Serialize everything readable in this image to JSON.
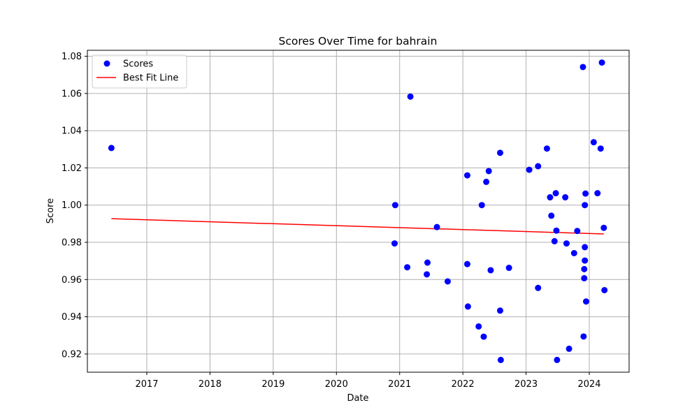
{
  "chart_data": {
    "type": "scatter",
    "title": "Scores Over Time for bahrain",
    "xlabel": "Date",
    "ylabel": "Score",
    "xlim": [
      2016.06,
      2024.63
    ],
    "ylim": [
      0.9102,
      1.0832
    ],
    "x_ticks": [
      2017,
      2018,
      2019,
      2020,
      2021,
      2022,
      2023,
      2024
    ],
    "y_ticks": [
      0.92,
      0.94,
      0.96,
      0.98,
      1.0,
      1.02,
      1.04,
      1.06,
      1.08
    ],
    "grid": true,
    "legend": {
      "position": "top-left",
      "entries": [
        "Scores",
        "Best Fit Line"
      ]
    },
    "colors": {
      "scores": "#0000ff",
      "fit_line": "#ff0000"
    },
    "series": [
      {
        "name": "Scores",
        "kind": "scatter",
        "points": [
          [
            2016.44,
            1.0307
          ],
          [
            2020.93,
            1.0
          ],
          [
            2020.92,
            0.9794
          ],
          [
            2021.12,
            0.9666
          ],
          [
            2021.17,
            1.0583
          ],
          [
            2021.43,
            0.9628
          ],
          [
            2021.44,
            0.9691
          ],
          [
            2021.59,
            0.9882
          ],
          [
            2021.76,
            0.959
          ],
          [
            2022.07,
            1.016
          ],
          [
            2022.07,
            0.9683
          ],
          [
            2022.08,
            0.9455
          ],
          [
            2022.25,
            0.9348
          ],
          [
            2022.3,
            1.0
          ],
          [
            2022.33,
            0.9293
          ],
          [
            2022.37,
            1.0125
          ],
          [
            2022.41,
            1.0183
          ],
          [
            2022.44,
            0.965
          ],
          [
            2022.59,
            1.0281
          ],
          [
            2022.59,
            0.9433
          ],
          [
            2022.6,
            0.9168
          ],
          [
            2022.73,
            0.9663
          ],
          [
            2023.05,
            1.019
          ],
          [
            2023.19,
            1.0209
          ],
          [
            2023.19,
            0.9555
          ],
          [
            2023.33,
            1.0304
          ],
          [
            2023.38,
            1.0042
          ],
          [
            2023.4,
            0.9943
          ],
          [
            2023.45,
            0.9806
          ],
          [
            2023.47,
            1.0064
          ],
          [
            2023.48,
            0.9863
          ],
          [
            2023.49,
            0.9168
          ],
          [
            2023.62,
            1.0042
          ],
          [
            2023.64,
            0.9794
          ],
          [
            2023.68,
            0.9228
          ],
          [
            2023.76,
            0.9742
          ],
          [
            2023.81,
            0.9861
          ],
          [
            2023.9,
            1.0742
          ],
          [
            2023.91,
            0.9294
          ],
          [
            2023.92,
            0.9656
          ],
          [
            2023.92,
            0.9607
          ],
          [
            2023.93,
            1.0
          ],
          [
            2023.93,
            0.9774
          ],
          [
            2023.93,
            0.9702
          ],
          [
            2023.94,
            1.0062
          ],
          [
            2023.95,
            0.9482
          ],
          [
            2024.07,
            1.0338
          ],
          [
            2024.13,
            1.0064
          ],
          [
            2024.18,
            1.0304
          ],
          [
            2024.2,
            1.0766
          ],
          [
            2024.23,
            0.9878
          ],
          [
            2024.24,
            0.9543
          ]
        ]
      },
      {
        "name": "Best Fit Line",
        "kind": "line",
        "points": [
          [
            2016.44,
            0.9927
          ],
          [
            2024.23,
            0.9845
          ]
        ]
      }
    ]
  }
}
